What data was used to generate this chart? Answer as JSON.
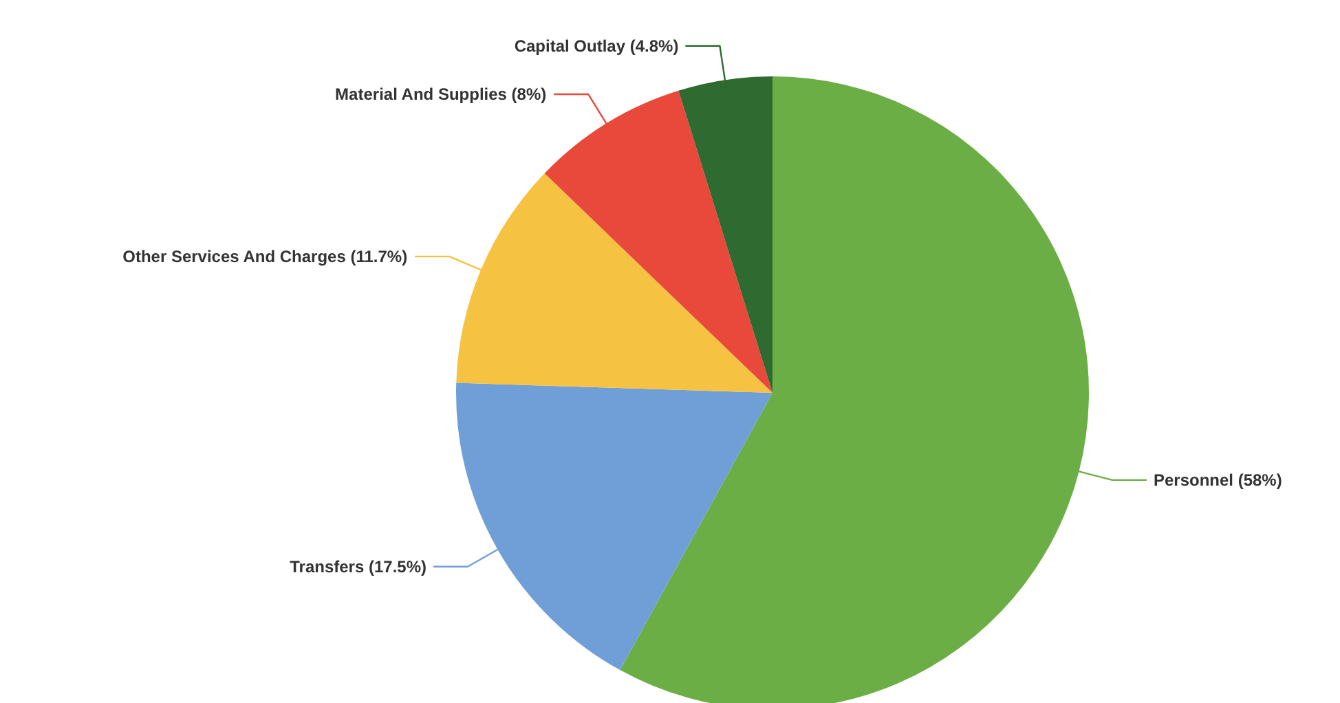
{
  "chart_data": {
    "type": "pie",
    "categories": [
      "Personnel (58%)",
      "Transfers (17.5%)",
      "Other Services And Charges (11.7%)",
      "Material And Supplies (8%)",
      "Capital Outlay (4.8%)"
    ],
    "values": [
      58,
      17.5,
      11.7,
      8,
      4.8
    ],
    "colors": [
      "#6cae46",
      "#6f9fd6",
      "#f5c242",
      "#e8493b",
      "#2f6a30"
    ]
  }
}
